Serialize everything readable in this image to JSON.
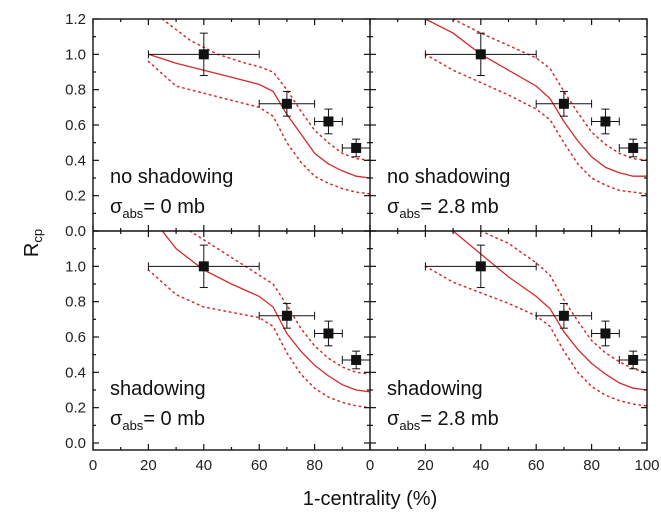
{
  "chart_data": {
    "type": "scatter",
    "xlabel": "1-centrality (%)",
    "ylabel_main": "R",
    "ylabel_sub": "cp",
    "ylim": [
      0.0,
      1.2
    ],
    "xlim": [
      0,
      100
    ],
    "yticks": [
      "0.0",
      "0.2",
      "0.4",
      "0.6",
      "0.8",
      "1.0",
      "1.2"
    ],
    "yticks_lower": [
      "0.0",
      "0.2",
      "0.4",
      "0.6",
      "0.8",
      "1.0"
    ],
    "xticks_left": [
      "0",
      "20",
      "40",
      "60",
      "80",
      "0"
    ],
    "xticks_right": [
      "20",
      "40",
      "60",
      "80",
      "100"
    ],
    "colors": {
      "curve": "#d62a2a",
      "points": "#111111"
    },
    "panels": [
      {
        "label1": "no shadowing",
        "sigma_symbol": "σ",
        "sigma_sub": "abs",
        "sigma_value": "= 0 mb",
        "points": [
          {
            "x": 40,
            "y": 1.0,
            "xerr": 20,
            "yerr": 0.12
          },
          {
            "x": 70,
            "y": 0.72,
            "xerr": 10,
            "yerr": 0.07
          },
          {
            "x": 85,
            "y": 0.62,
            "xerr": 5,
            "yerr": 0.07
          },
          {
            "x": 95,
            "y": 0.47,
            "xerr": 5,
            "yerr": 0.05
          }
        ],
        "curve": [
          [
            20,
            1.0
          ],
          [
            30,
            0.95
          ],
          [
            40,
            0.91
          ],
          [
            50,
            0.87
          ],
          [
            60,
            0.83
          ],
          [
            65,
            0.79
          ],
          [
            70,
            0.66
          ],
          [
            75,
            0.55
          ],
          [
            80,
            0.44
          ],
          [
            85,
            0.38
          ],
          [
            90,
            0.34
          ],
          [
            95,
            0.31
          ],
          [
            100,
            0.3
          ]
        ],
        "band_upper": [
          [
            25,
            1.2
          ],
          [
            35,
            1.08
          ],
          [
            45,
            1.0
          ],
          [
            55,
            0.95
          ],
          [
            60,
            0.93
          ],
          [
            65,
            0.9
          ],
          [
            70,
            0.8
          ],
          [
            75,
            0.68
          ],
          [
            80,
            0.57
          ],
          [
            85,
            0.5
          ],
          [
            90,
            0.44
          ],
          [
            95,
            0.41
          ],
          [
            100,
            0.4
          ]
        ],
        "band_lower": [
          [
            20,
            0.96
          ],
          [
            30,
            0.82
          ],
          [
            40,
            0.78
          ],
          [
            50,
            0.74
          ],
          [
            60,
            0.7
          ],
          [
            65,
            0.65
          ],
          [
            70,
            0.5
          ],
          [
            75,
            0.39
          ],
          [
            80,
            0.31
          ],
          [
            85,
            0.27
          ],
          [
            90,
            0.24
          ],
          [
            95,
            0.22
          ],
          [
            100,
            0.21
          ]
        ]
      },
      {
        "label1": "no shadowing",
        "sigma_symbol": "σ",
        "sigma_sub": "abs",
        "sigma_value": "= 2.8 mb",
        "points": [
          {
            "x": 40,
            "y": 1.0,
            "xerr": 20,
            "yerr": 0.12
          },
          {
            "x": 70,
            "y": 0.72,
            "xerr": 10,
            "yerr": 0.07
          },
          {
            "x": 85,
            "y": 0.62,
            "xerr": 5,
            "yerr": 0.07
          },
          {
            "x": 95,
            "y": 0.47,
            "xerr": 5,
            "yerr": 0.05
          }
        ],
        "curve": [
          [
            20,
            1.2
          ],
          [
            30,
            1.12
          ],
          [
            40,
            1.0
          ],
          [
            50,
            0.91
          ],
          [
            60,
            0.82
          ],
          [
            65,
            0.75
          ],
          [
            70,
            0.62
          ],
          [
            75,
            0.51
          ],
          [
            80,
            0.42
          ],
          [
            85,
            0.36
          ],
          [
            90,
            0.33
          ],
          [
            95,
            0.31
          ],
          [
            100,
            0.31
          ]
        ],
        "band_upper": [
          [
            30,
            1.2
          ],
          [
            40,
            1.12
          ],
          [
            50,
            1.05
          ],
          [
            60,
            0.98
          ],
          [
            65,
            0.92
          ],
          [
            70,
            0.79
          ],
          [
            75,
            0.67
          ],
          [
            80,
            0.56
          ],
          [
            85,
            0.49
          ],
          [
            90,
            0.44
          ],
          [
            95,
            0.41
          ],
          [
            100,
            0.4
          ]
        ],
        "band_lower": [
          [
            20,
            1.0
          ],
          [
            30,
            0.91
          ],
          [
            40,
            0.84
          ],
          [
            50,
            0.77
          ],
          [
            60,
            0.69
          ],
          [
            65,
            0.63
          ],
          [
            70,
            0.5
          ],
          [
            75,
            0.38
          ],
          [
            80,
            0.3
          ],
          [
            85,
            0.26
          ],
          [
            90,
            0.23
          ],
          [
            95,
            0.22
          ],
          [
            100,
            0.21
          ]
        ]
      },
      {
        "label1": "shadowing",
        "sigma_symbol": "σ",
        "sigma_sub": "abs",
        "sigma_value": "= 0 mb",
        "points": [
          {
            "x": 40,
            "y": 1.0,
            "xerr": 20,
            "yerr": 0.12
          },
          {
            "x": 70,
            "y": 0.72,
            "xerr": 10,
            "yerr": 0.07
          },
          {
            "x": 85,
            "y": 0.62,
            "xerr": 5,
            "yerr": 0.07
          },
          {
            "x": 95,
            "y": 0.47,
            "xerr": 5,
            "yerr": 0.05
          }
        ],
        "curve": [
          [
            25,
            1.2
          ],
          [
            30,
            1.1
          ],
          [
            40,
            0.98
          ],
          [
            50,
            0.9
          ],
          [
            60,
            0.83
          ],
          [
            65,
            0.77
          ],
          [
            70,
            0.62
          ],
          [
            75,
            0.52
          ],
          [
            80,
            0.44
          ],
          [
            85,
            0.38
          ],
          [
            90,
            0.33
          ],
          [
            95,
            0.3
          ],
          [
            100,
            0.29
          ]
        ],
        "band_upper": [
          [
            35,
            1.2
          ],
          [
            45,
            1.1
          ],
          [
            55,
            1.0
          ],
          [
            60,
            0.95
          ],
          [
            65,
            0.9
          ],
          [
            70,
            0.78
          ],
          [
            75,
            0.65
          ],
          [
            80,
            0.55
          ],
          [
            85,
            0.48
          ],
          [
            90,
            0.43
          ],
          [
            95,
            0.4
          ],
          [
            100,
            0.39
          ]
        ],
        "band_lower": [
          [
            20,
            0.98
          ],
          [
            30,
            0.84
          ],
          [
            40,
            0.77
          ],
          [
            50,
            0.74
          ],
          [
            60,
            0.71
          ],
          [
            65,
            0.66
          ],
          [
            70,
            0.51
          ],
          [
            75,
            0.39
          ],
          [
            80,
            0.31
          ],
          [
            85,
            0.26
          ],
          [
            90,
            0.23
          ],
          [
            95,
            0.21
          ],
          [
            100,
            0.2
          ]
        ]
      },
      {
        "label1": "shadowing",
        "sigma_symbol": "σ",
        "sigma_sub": "abs",
        "sigma_value": "= 2.8 mb",
        "points": [
          {
            "x": 40,
            "y": 1.0,
            "xerr": 20,
            "yerr": 0.12
          },
          {
            "x": 70,
            "y": 0.72,
            "xerr": 10,
            "yerr": 0.07
          },
          {
            "x": 85,
            "y": 0.62,
            "xerr": 5,
            "yerr": 0.07
          },
          {
            "x": 95,
            "y": 0.47,
            "xerr": 5,
            "yerr": 0.05
          }
        ],
        "curve": [
          [
            30,
            1.2
          ],
          [
            40,
            1.07
          ],
          [
            50,
            0.94
          ],
          [
            60,
            0.83
          ],
          [
            65,
            0.76
          ],
          [
            70,
            0.63
          ],
          [
            75,
            0.53
          ],
          [
            80,
            0.45
          ],
          [
            85,
            0.39
          ],
          [
            90,
            0.34
          ],
          [
            95,
            0.31
          ],
          [
            100,
            0.3
          ]
        ],
        "band_upper": [
          [
            40,
            1.2
          ],
          [
            50,
            1.13
          ],
          [
            60,
            1.02
          ],
          [
            65,
            0.95
          ],
          [
            70,
            0.81
          ],
          [
            75,
            0.69
          ],
          [
            80,
            0.58
          ],
          [
            85,
            0.51
          ],
          [
            90,
            0.46
          ],
          [
            95,
            0.42
          ],
          [
            100,
            0.4
          ]
        ],
        "band_lower": [
          [
            20,
            1.0
          ],
          [
            30,
            0.91
          ],
          [
            40,
            0.85
          ],
          [
            50,
            0.79
          ],
          [
            60,
            0.72
          ],
          [
            65,
            0.66
          ],
          [
            70,
            0.52
          ],
          [
            75,
            0.4
          ],
          [
            80,
            0.32
          ],
          [
            85,
            0.27
          ],
          [
            90,
            0.24
          ],
          [
            95,
            0.22
          ],
          [
            100,
            0.21
          ]
        ]
      }
    ]
  }
}
